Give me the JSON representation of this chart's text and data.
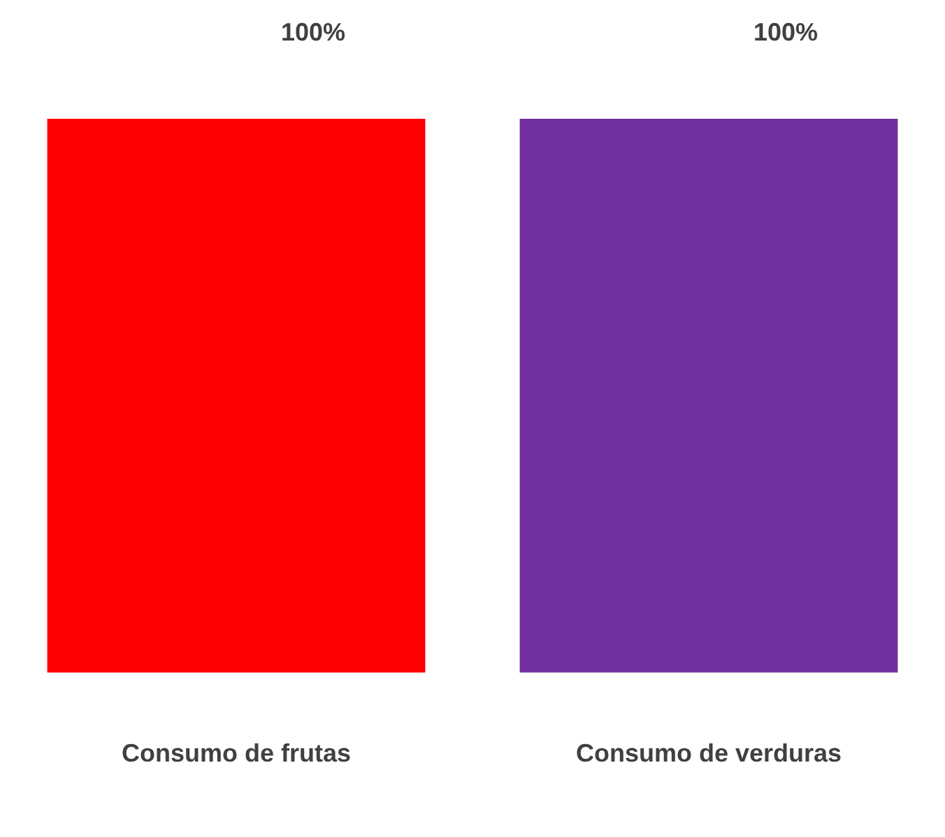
{
  "chart_data": {
    "type": "bar",
    "categories": [
      "Consumo de frutas",
      "Consumo de verduras"
    ],
    "values": [
      100,
      100
    ],
    "colors": [
      "#ff0000",
      "#7030a0"
    ],
    "value_labels": [
      "100%",
      "100%"
    ],
    "grid": false,
    "legend": false
  }
}
